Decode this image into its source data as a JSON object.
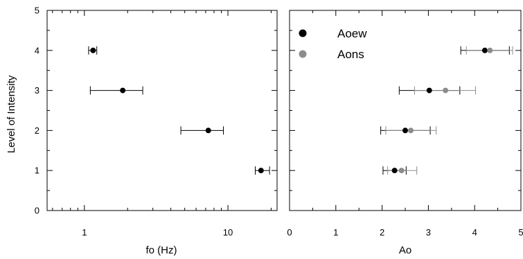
{
  "chart_data": [
    {
      "type": "scatter",
      "xscale": "log",
      "xlabel": "fo (Hz)",
      "ylabel": "Level of Intensity",
      "xlim": [
        0.55,
        22
      ],
      "ylim": [
        0,
        5
      ],
      "x_tick_labels": [
        "1",
        "10"
      ],
      "y_tick_labels": [
        "0",
        "1",
        "2",
        "3",
        "4",
        "5"
      ],
      "grid": false,
      "series": [
        {
          "color": "#000000",
          "points": [
            {
              "y": 4,
              "x": 1.15,
              "xerr_low": 1.07,
              "xerr_high": 1.22
            },
            {
              "y": 3,
              "x": 1.85,
              "xerr_low": 1.1,
              "xerr_high": 2.55
            },
            {
              "y": 2,
              "x": 7.3,
              "xerr_low": 4.7,
              "xerr_high": 9.3
            },
            {
              "y": 1,
              "x": 17,
              "xerr_low": 15.5,
              "xerr_high": 19.5
            }
          ]
        }
      ]
    },
    {
      "type": "scatter",
      "xlabel": "Ao",
      "ylabel": "",
      "xlim": [
        0,
        5
      ],
      "ylim": [
        0,
        5
      ],
      "x_tick_labels": [
        "0",
        "1",
        "2",
        "3",
        "4",
        "5"
      ],
      "grid": false,
      "legend": "top-left",
      "series": [
        {
          "name": "Aoew",
          "color": "#000000",
          "points": [
            {
              "y": 4,
              "x": 4.22,
              "xerr_low": 3.7,
              "xerr_high": 4.75
            },
            {
              "y": 3,
              "x": 3.02,
              "xerr_low": 2.37,
              "xerr_high": 3.68
            },
            {
              "y": 2,
              "x": 2.5,
              "xerr_low": 1.97,
              "xerr_high": 3.04
            },
            {
              "y": 1,
              "x": 2.27,
              "xerr_low": 2.02,
              "xerr_high": 2.52
            }
          ]
        },
        {
          "name": "Aons",
          "color": "#8c8c8c",
          "points": [
            {
              "y": 4,
              "x": 4.33,
              "xerr_low": 3.82,
              "xerr_high": 4.82
            },
            {
              "y": 3,
              "x": 3.37,
              "xerr_low": 2.7,
              "xerr_high": 4.02
            },
            {
              "y": 2,
              "x": 2.62,
              "xerr_low": 2.08,
              "xerr_high": 3.17
            },
            {
              "y": 1,
              "x": 2.42,
              "xerr_low": 2.12,
              "xerr_high": 2.75
            }
          ]
        }
      ]
    }
  ]
}
